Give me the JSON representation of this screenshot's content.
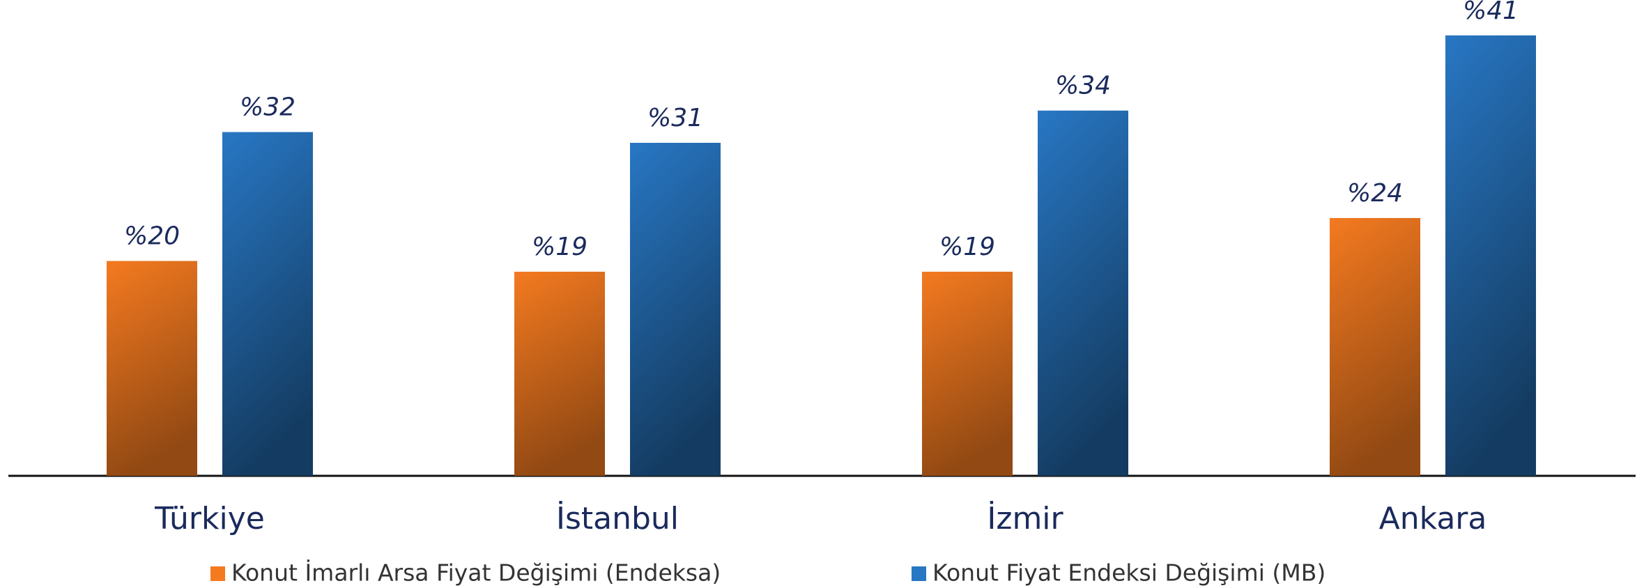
{
  "chart_data": {
    "type": "bar",
    "categories": [
      "Türkiye",
      "İstanbul",
      "İzmir",
      "Ankara"
    ],
    "series": [
      {
        "name": "Konut İmarlı Arsa Fiyat Değişimi (Endeksa)",
        "color": "#f47a20",
        "values": [
          20,
          19,
          19,
          24
        ],
        "value_labels": [
          "%20",
          "%19",
          "%19",
          "%24"
        ]
      },
      {
        "name": "Konut Fiyat Endeksi Değişimi (MB)",
        "color": "#2877c4",
        "values": [
          32,
          31,
          34,
          41
        ],
        "value_labels": [
          "%32",
          "%31",
          "%34",
          "%41"
        ]
      }
    ]
  }
}
